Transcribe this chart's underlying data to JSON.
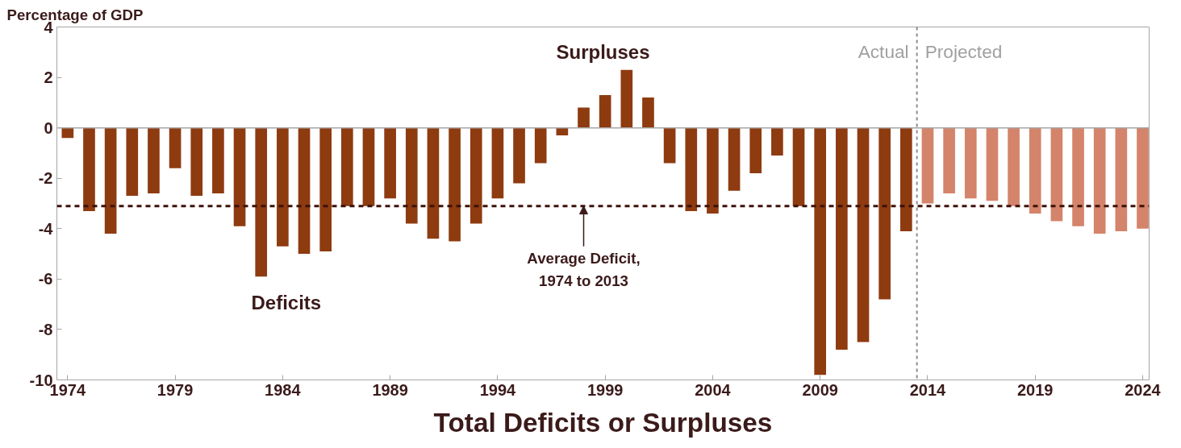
{
  "chart_data": {
    "type": "bar",
    "title": "Total Deficits or Surpluses",
    "ylabel": "Percentage of GDP",
    "series": [
      {
        "color": "#8e3b10",
        "x": [
          1974,
          1975,
          1976,
          1977,
          1978,
          1979,
          1980,
          1981,
          1982,
          1983,
          1984,
          1985,
          1986,
          1987,
          1988,
          1989,
          1990,
          1991,
          1992,
          1993,
          1994,
          1995,
          1996,
          1997,
          1998,
          1999,
          2000,
          2001,
          2002,
          2003,
          2004,
          2005,
          2006,
          2007,
          2008,
          2009,
          2010,
          2011,
          2012,
          2013
        ],
        "values": [
          -0.4,
          -3.3,
          -4.2,
          -2.7,
          -2.6,
          -1.6,
          -2.7,
          -2.6,
          -3.9,
          -5.9,
          -4.7,
          -5.0,
          -4.9,
          -3.1,
          -3.1,
          -2.8,
          -3.8,
          -4.4,
          -4.5,
          -3.8,
          -2.8,
          -2.2,
          -1.4,
          -0.3,
          0.8,
          1.3,
          2.3,
          1.2,
          -1.4,
          -3.3,
          -3.4,
          -2.5,
          -1.8,
          -1.1,
          -3.1,
          -9.8,
          -8.8,
          -8.5,
          -6.8,
          -4.1
        ]
      },
      {
        "color": "#d4846a",
        "x": [
          2014,
          2015,
          2016,
          2017,
          2018,
          2019,
          2020,
          2021,
          2022,
          2023,
          2024
        ],
        "values": [
          -3.0,
          -2.6,
          -2.8,
          -2.9,
          -3.1,
          -3.4,
          -3.7,
          -3.9,
          -4.2,
          -4.1,
          -4.0
        ]
      }
    ],
    "xlim": [
      1973.5,
      2024.3
    ],
    "xticks": [
      1974,
      1979,
      1984,
      1989,
      1994,
      1999,
      2004,
      2009,
      2014,
      2019,
      2024
    ],
    "ylim": [
      -10,
      4
    ],
    "yticks": [
      -10,
      -8,
      -6,
      -4,
      -2,
      0,
      2,
      4
    ],
    "ref_lines": [
      {
        "axis": "y",
        "value": 0,
        "color": "#a6a6a6",
        "line_style": "solid"
      },
      {
        "axis": "y",
        "value": -3.1,
        "color": "#3d1208",
        "line_style": "dashed"
      },
      {
        "axis": "x",
        "value": 2013.5,
        "color": "#8c8c8c",
        "line_style": "dashed"
      }
    ],
    "annotations": [
      "Surpluses",
      "Deficits",
      {
        "text": "Average Deficit,\n1974 to 2013",
        "x": 1998,
        "y": -3.1
      },
      "Actual",
      "Projected"
    ],
    "grid": false
  }
}
